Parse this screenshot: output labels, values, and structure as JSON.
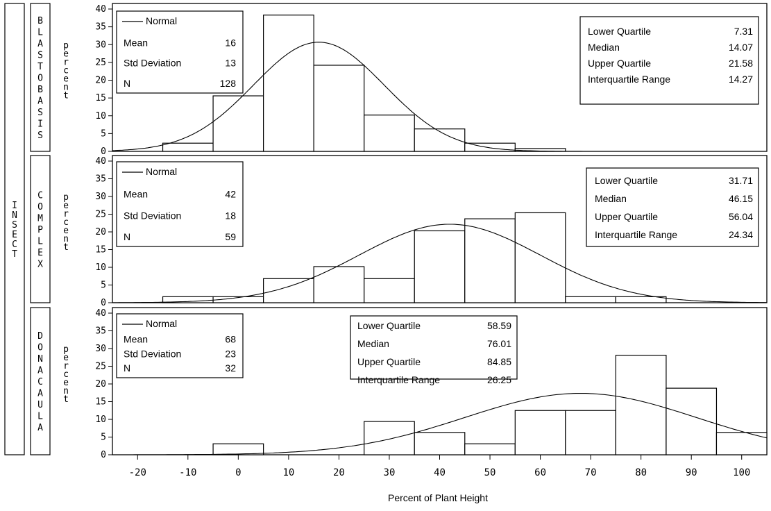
{
  "chart_data": {
    "type": "bar",
    "histogram": true,
    "xlabel": "Percent of Plant Height",
    "xlim": [
      -25,
      105
    ],
    "xticks": [
      -20,
      -10,
      0,
      10,
      20,
      30,
      40,
      50,
      60,
      70,
      80,
      90,
      100
    ],
    "ylabel": "percent",
    "ylim": [
      0,
      40
    ],
    "yticks": [
      0,
      5,
      10,
      15,
      20,
      25,
      30,
      35,
      40
    ],
    "group_axis_label": "INSECT",
    "bin_width": 10,
    "panels": [
      {
        "group": "BLASTOBASIS",
        "bin_centers": [
          -10,
          0,
          10,
          20,
          30,
          40,
          50,
          60,
          70
        ],
        "values": [
          2.3,
          15.6,
          38.3,
          24.2,
          10.2,
          6.3,
          2.3,
          0.8,
          0.0
        ],
        "normal": {
          "legend": "Normal",
          "mean": 16,
          "std": 13
        },
        "stats_left": [
          {
            "label": "Mean",
            "value": "16"
          },
          {
            "label": "Std Deviation",
            "value": "13"
          },
          {
            "label": "N",
            "value": "128"
          }
        ],
        "stats_right": [
          {
            "label": "Lower Quartile",
            "value": "7.31"
          },
          {
            "label": "Median",
            "value": "14.07"
          },
          {
            "label": "Upper Quartile",
            "value": "21.58"
          },
          {
            "label": "Interquartile Range",
            "value": "14.27"
          }
        ]
      },
      {
        "group": "COMPLEX",
        "bin_centers": [
          -10,
          0,
          10,
          20,
          30,
          40,
          50,
          60,
          70,
          80
        ],
        "values": [
          1.7,
          1.7,
          6.8,
          10.2,
          6.8,
          20.3,
          23.7,
          25.4,
          1.7,
          1.7
        ],
        "normal": {
          "legend": "Normal",
          "mean": 42,
          "std": 18
        },
        "stats_left": [
          {
            "label": "Mean",
            "value": "42"
          },
          {
            "label": "Std Deviation",
            "value": "18"
          },
          {
            "label": "N",
            "value": "59"
          }
        ],
        "stats_right": [
          {
            "label": "Lower Quartile",
            "value": "31.71"
          },
          {
            "label": "Median",
            "value": "46.15"
          },
          {
            "label": "Upper Quartile",
            "value": "56.04"
          },
          {
            "label": "Interquartile Range",
            "value": "24.34"
          }
        ]
      },
      {
        "group": "DONACAULA",
        "bin_centers": [
          0,
          30,
          40,
          50,
          60,
          70,
          80,
          90,
          100
        ],
        "values": [
          3.1,
          9.4,
          6.3,
          3.1,
          12.5,
          12.5,
          28.1,
          18.8,
          6.3
        ],
        "normal": {
          "legend": "Normal",
          "mean": 68,
          "std": 23
        },
        "stats_left": [
          {
            "label": "Mean",
            "value": "68"
          },
          {
            "label": "Std Deviation",
            "value": "23"
          },
          {
            "label": "N",
            "value": "32"
          }
        ],
        "stats_right": [
          {
            "label": "Lower Quartile",
            "value": "58.59"
          },
          {
            "label": "Median",
            "value": "76.01"
          },
          {
            "label": "Upper Quartile",
            "value": "84.85"
          },
          {
            "label": "Interquartile Range",
            "value": "26.25"
          }
        ]
      }
    ]
  }
}
